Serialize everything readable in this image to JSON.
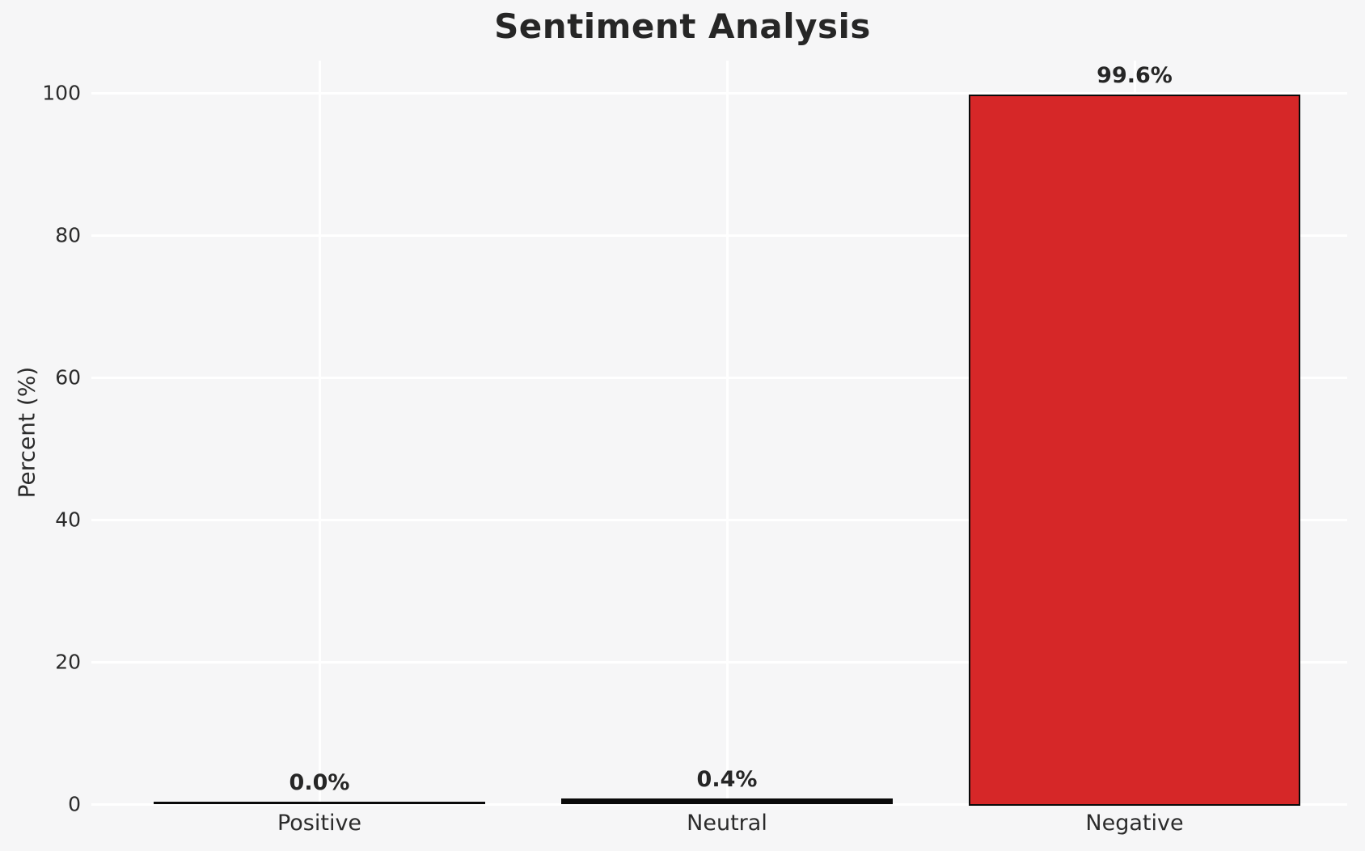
{
  "chart_data": {
    "type": "bar",
    "title": "Sentiment Analysis",
    "xlabel": "",
    "ylabel": "Percent (%)",
    "categories": [
      "Positive",
      "Neutral",
      "Negative"
    ],
    "values": [
      0.0,
      0.4,
      99.6
    ],
    "value_labels": [
      "0.0%",
      "0.4%",
      "99.6%"
    ],
    "yticks": [
      "0",
      "20",
      "40",
      "60",
      "80",
      "100"
    ],
    "ytick_values": [
      0,
      20,
      40,
      60,
      80,
      100
    ],
    "ylim": [
      0,
      105
    ],
    "grid": true,
    "legend_position": "none",
    "bar_fill_colors": [
      "#1a1a1a",
      "#1a1a1a",
      "#d62728"
    ],
    "bar_edge_color": "#0a0a0a",
    "background_color": "#f6f6f7",
    "gridline_color": "#ffffff",
    "text_color": "#2b2b2b"
  }
}
